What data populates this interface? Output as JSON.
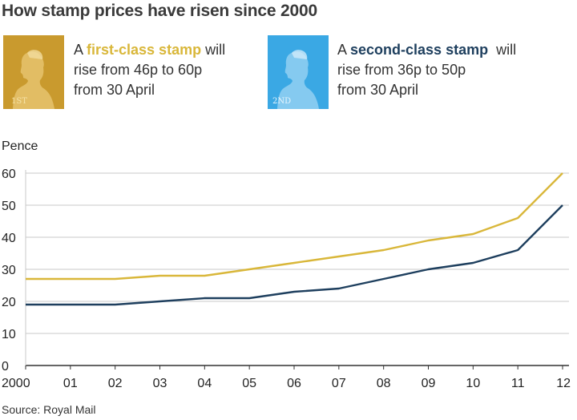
{
  "title": "How stamp prices have risen since 2000",
  "stamps": {
    "first": {
      "label": "1ST",
      "text_pre": "A ",
      "highlight": "first-class stamp",
      "text_post": " will",
      "line2": "rise from 46p to 60p",
      "line3": "from 30 April",
      "color": "#c99a2e"
    },
    "second": {
      "label": "2ND",
      "text_pre": "A ",
      "highlight": "second-class stamp",
      "text_post": "  will",
      "line2": "rise from 36p to 50p",
      "line3": "from 30 April",
      "color": "#3aa8e4"
    }
  },
  "source": "Source: Royal Mail",
  "chart_data": {
    "type": "line",
    "ylabel": "Pence",
    "xlabel": "",
    "categories": [
      "2000",
      "01",
      "02",
      "03",
      "04",
      "05",
      "06",
      "07",
      "08",
      "09",
      "10",
      "11",
      "12"
    ],
    "ylim": [
      0,
      60
    ],
    "yticks": [
      0,
      10,
      20,
      30,
      40,
      50,
      60
    ],
    "grid": true,
    "series": [
      {
        "name": "first-class stamp",
        "color": "#d9b73a",
        "values": [
          27,
          27,
          27,
          28,
          28,
          30,
          32,
          34,
          36,
          39,
          41,
          46,
          60
        ]
      },
      {
        "name": "second-class stamp",
        "color": "#1e3f5e",
        "values": [
          19,
          19,
          19,
          20,
          21,
          21,
          23,
          24,
          27,
          30,
          32,
          36,
          50
        ]
      }
    ]
  }
}
